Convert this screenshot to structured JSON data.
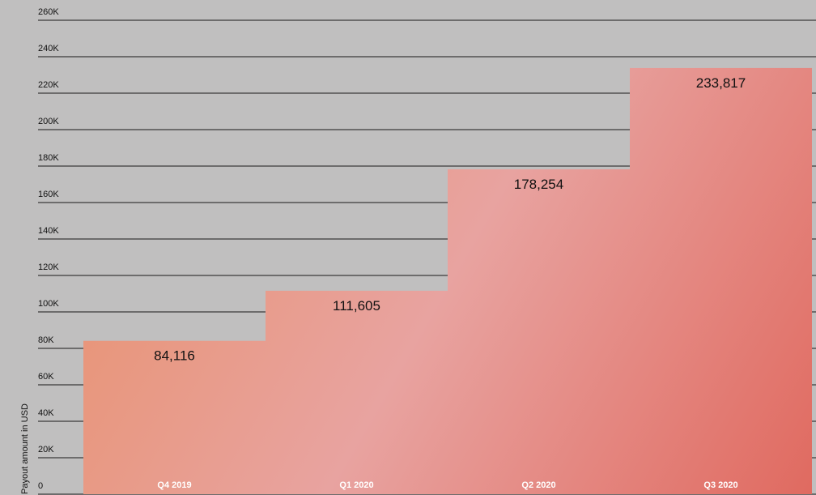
{
  "chart_data": {
    "type": "bar",
    "y_label": "Payout amount in USD",
    "categories": [
      "Q4 2019",
      "Q1 2020",
      "Q2 2020",
      "Q3 2020"
    ],
    "values": [
      84116,
      111605,
      178254,
      233817
    ],
    "value_labels": [
      "84,116",
      "111,605",
      "178,254",
      "233,817"
    ],
    "color": "#e8876f",
    "ylim": [
      0,
      260000
    ],
    "yticks": [
      0,
      {
        "value": 20000,
        "label": "20K"
      },
      {
        "value": 40000,
        "label": "40K"
      },
      {
        "value": 60000,
        "label": "60K"
      },
      {
        "value": 80000,
        "label": "80K"
      },
      {
        "value": 100000,
        "label": "100K"
      },
      {
        "value": 120000,
        "label": "120K"
      },
      {
        "value": 140000,
        "label": "140K"
      },
      {
        "value": 160000,
        "label": "160K"
      },
      {
        "value": 180000,
        "label": "180K"
      },
      {
        "value": 200000,
        "label": "200K"
      },
      {
        "value": 220000,
        "label": "220K"
      },
      {
        "value": 240000,
        "label": "240K"
      },
      {
        "value": 260000,
        "label": "260K"
      }
    ],
    "grid": true
  }
}
